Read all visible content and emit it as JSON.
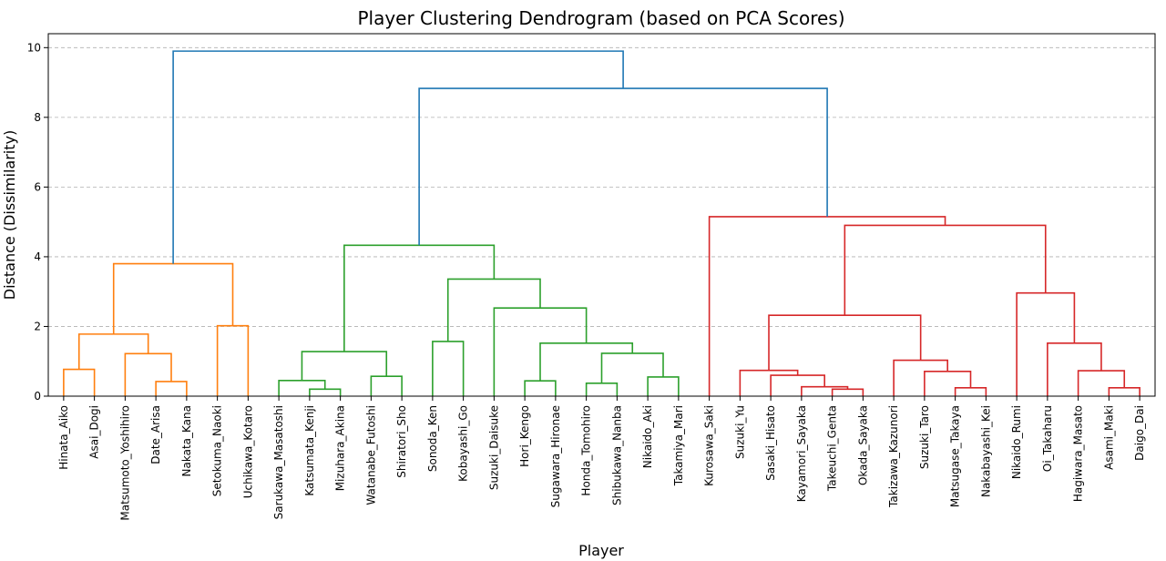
{
  "chart_data": {
    "type": "dendrogram",
    "title": "Player Clustering Dendrogram (based on PCA Scores)",
    "xlabel": "Player",
    "ylabel": "Distance (Dissimilarity)",
    "ylim": [
      0,
      10.4
    ],
    "yticks": [
      0,
      2,
      4,
      6,
      8,
      10
    ],
    "grid": "horizontal dashed",
    "leaves": [
      "Hinata_Aiko",
      "Asai_Dogi",
      "Matsumoto_Yoshihiro",
      "Date_Arisa",
      "Nakata_Kana",
      "Setokuma_Naoki",
      "Uchikawa_Kotaro",
      "Sarukawa_Masatoshi",
      "Katsumata_Kenji",
      "Mizuhara_Akina",
      "Watanabe_Futoshi",
      "Shiratori_Sho",
      "Sonoda_Ken",
      "Kobayashi_Go",
      "Suzuki_Daisuke",
      "Hori_Kengo",
      "Sugawara_Hironae",
      "Honda_Tomohiro",
      "Shibukawa_Nanba",
      "Nikaido_Aki",
      "Takamiya_Mari",
      "Kurosawa_Saki",
      "Suzuki_Yu",
      "Sasaki_Hisato",
      "Kayamori_Sayaka",
      "Takeuchi_Genta",
      "Okada_Sayaka",
      "Takizawa_Kazunori",
      "Suzuki_Taro",
      "Matsugase_Takaya",
      "Nakabayashi_Kei",
      "Nikaido_Rumi",
      "Oi_Takaharu",
      "Hagiwara_Masato",
      "Asami_Maki",
      "Daigo_Dai"
    ],
    "cluster_colors": {
      "orange": "#ff7f0e",
      "green": "#2ca02c",
      "red": "#d62728",
      "root": "#1f77b4"
    },
    "merges": [
      {
        "a": "L0",
        "b": "L1",
        "height": 0.77,
        "color": "orange"
      },
      {
        "a": "L3",
        "b": "L4",
        "height": 0.42,
        "color": "orange"
      },
      {
        "a": "L2",
        "b": "M1",
        "height": 1.22,
        "color": "orange"
      },
      {
        "a": "M0",
        "b": "M2",
        "height": 1.78,
        "color": "orange"
      },
      {
        "a": "L5",
        "b": "L6",
        "height": 2.02,
        "color": "orange"
      },
      {
        "a": "M3",
        "b": "M4",
        "height": 3.8,
        "color": "orange"
      },
      {
        "a": "L8",
        "b": "L9",
        "height": 0.2,
        "color": "green"
      },
      {
        "a": "L7",
        "b": "M6",
        "height": 0.45,
        "color": "green"
      },
      {
        "a": "L10",
        "b": "L11",
        "height": 0.57,
        "color": "green"
      },
      {
        "a": "M7",
        "b": "M8",
        "height": 1.28,
        "color": "green"
      },
      {
        "a": "L12",
        "b": "L13",
        "height": 1.57,
        "color": "green"
      },
      {
        "a": "L15",
        "b": "L16",
        "height": 0.44,
        "color": "green"
      },
      {
        "a": "L17",
        "b": "L18",
        "height": 0.37,
        "color": "green"
      },
      {
        "a": "L19",
        "b": "L20",
        "height": 0.55,
        "color": "green"
      },
      {
        "a": "M12",
        "b": "M13",
        "height": 1.23,
        "color": "green"
      },
      {
        "a": "M11",
        "b": "M14",
        "height": 1.52,
        "color": "green"
      },
      {
        "a": "L14",
        "b": "M15",
        "height": 2.53,
        "color": "green"
      },
      {
        "a": "M10",
        "b": "M16",
        "height": 3.36,
        "color": "green"
      },
      {
        "a": "M9",
        "b": "M17",
        "height": 4.33,
        "color": "green"
      },
      {
        "a": "L25",
        "b": "L26",
        "height": 0.2,
        "color": "red"
      },
      {
        "a": "L24",
        "b": "M19",
        "height": 0.27,
        "color": "red"
      },
      {
        "a": "L23",
        "b": "M20",
        "height": 0.6,
        "color": "red"
      },
      {
        "a": "L22",
        "b": "M21",
        "height": 0.74,
        "color": "red"
      },
      {
        "a": "L29",
        "b": "L30",
        "height": 0.24,
        "color": "red"
      },
      {
        "a": "L28",
        "b": "M23",
        "height": 0.71,
        "color": "red"
      },
      {
        "a": "L27",
        "b": "M24",
        "height": 1.03,
        "color": "red"
      },
      {
        "a": "M22",
        "b": "M25",
        "height": 2.32,
        "color": "red"
      },
      {
        "a": "L34",
        "b": "L35",
        "height": 0.24,
        "color": "red"
      },
      {
        "a": "L33",
        "b": "M27",
        "height": 0.73,
        "color": "red"
      },
      {
        "a": "L32",
        "b": "M28",
        "height": 1.52,
        "color": "red"
      },
      {
        "a": "L31",
        "b": "M29",
        "height": 2.96,
        "color": "red"
      },
      {
        "a": "M26",
        "b": "M30",
        "height": 4.9,
        "color": "red"
      },
      {
        "a": "L21",
        "b": "M31",
        "height": 5.15,
        "color": "red"
      },
      {
        "a": "M18",
        "b": "M32",
        "height": 8.83,
        "color": "root"
      },
      {
        "a": "M5",
        "b": "M33",
        "height": 9.9,
        "color": "root"
      }
    ]
  }
}
